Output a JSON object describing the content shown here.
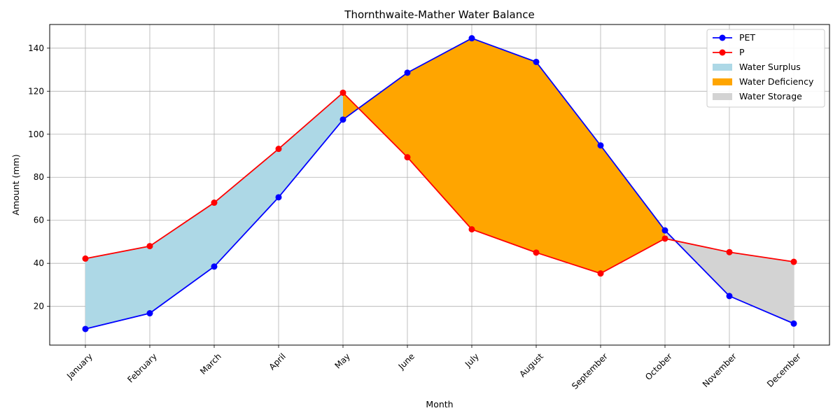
{
  "chart_data": {
    "type": "line",
    "title": "Thornthwaite-Mather Water Balance",
    "xlabel": "Month",
    "ylabel": "Amount (mm)",
    "categories": [
      "January",
      "February",
      "March",
      "April",
      "May",
      "June",
      "July",
      "August",
      "September",
      "October",
      "November",
      "December"
    ],
    "ylim": [
      2,
      151
    ],
    "yticks": [
      20,
      40,
      60,
      80,
      100,
      120,
      140
    ],
    "grid": true,
    "legend_position": "top-right",
    "series": [
      {
        "name": "PET",
        "color": "#0000ff",
        "values": [
          9.5,
          16.8,
          38.5,
          70.7,
          106.8,
          128.6,
          144.6,
          133.6,
          94.8,
          55.3,
          24.8,
          12.0
        ]
      },
      {
        "name": "P",
        "color": "#ff0000",
        "values": [
          42.2,
          48.0,
          68.2,
          93.2,
          119.3,
          89.3,
          55.8,
          45.0,
          35.3,
          51.5,
          45.2,
          40.7
        ]
      }
    ],
    "fills": [
      {
        "name": "Water Surplus",
        "color": "#add8e6",
        "condition": "P > PET",
        "months": [
          0,
          4
        ]
      },
      {
        "name": "Water Deficiency",
        "color": "#ffa500",
        "condition": "PET > P",
        "months": [
          4,
          9
        ]
      },
      {
        "name": "Water Storage",
        "color": "#d3d3d3",
        "condition": "P > PET",
        "months": [
          9,
          11
        ]
      }
    ]
  }
}
